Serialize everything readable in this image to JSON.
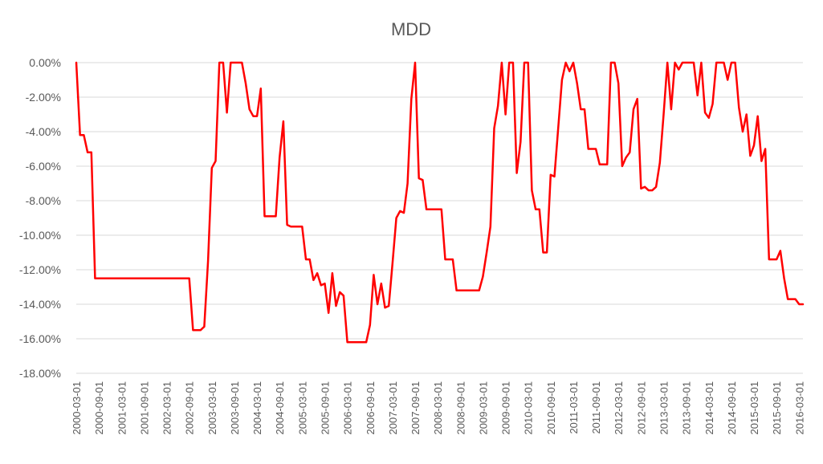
{
  "chart_data": {
    "type": "line",
    "title": "MDD",
    "xlabel": "",
    "ylabel": "",
    "ylim": [
      -0.18,
      0.0
    ],
    "y_ticks": [
      {
        "value": 0.0,
        "label": "0.00%"
      },
      {
        "value": -0.02,
        "label": "-2.00%"
      },
      {
        "value": -0.04,
        "label": "-4.00%"
      },
      {
        "value": -0.06,
        "label": "-6.00%"
      },
      {
        "value": -0.08,
        "label": "-8.00%"
      },
      {
        "value": -0.1,
        "label": "-10.00%"
      },
      {
        "value": -0.12,
        "label": "-12.00%"
      },
      {
        "value": -0.14,
        "label": "-14.00%"
      },
      {
        "value": -0.16,
        "label": "-16.00%"
      },
      {
        "value": -0.18,
        "label": "-18.00%"
      }
    ],
    "x_ticks": [
      "2000-03-01",
      "2000-09-01",
      "2001-03-01",
      "2001-09-01",
      "2002-03-01",
      "2002-09-01",
      "2003-03-01",
      "2003-09-01",
      "2004-03-01",
      "2004-09-01",
      "2005-03-01",
      "2005-09-01",
      "2006-03-01",
      "2006-09-01",
      "2007-03-01",
      "2007-09-01",
      "2008-03-01",
      "2008-09-01",
      "2009-03-01",
      "2009-09-01",
      "2010-03-01",
      "2010-09-01",
      "2011-03-01",
      "2011-09-01",
      "2012-03-01",
      "2012-09-01",
      "2013-03-01",
      "2013-09-01",
      "2014-03-01",
      "2014-09-01",
      "2015-03-01",
      "2015-09-01",
      "2016-03-01"
    ],
    "grid": true,
    "legend": "none",
    "series": [
      {
        "color": "#ff0000",
        "points": [
          [
            "2000-03-01",
            0.0
          ],
          [
            "2000-04-01",
            -0.042
          ],
          [
            "2000-05-01",
            -0.042
          ],
          [
            "2000-06-01",
            -0.052
          ],
          [
            "2000-07-01",
            -0.052
          ],
          [
            "2000-08-01",
            -0.125
          ],
          [
            "2002-09-01",
            -0.125
          ],
          [
            "2002-10-01",
            -0.155
          ],
          [
            "2002-11-01",
            -0.155
          ],
          [
            "2002-12-01",
            -0.155
          ],
          [
            "2003-01-01",
            -0.153
          ],
          [
            "2003-02-01",
            -0.115
          ],
          [
            "2003-03-01",
            -0.061
          ],
          [
            "2003-04-01",
            -0.057
          ],
          [
            "2003-05-01",
            0.0
          ],
          [
            "2003-06-01",
            0.0
          ],
          [
            "2003-07-01",
            -0.029
          ],
          [
            "2003-08-01",
            0.0
          ],
          [
            "2003-09-01",
            0.0
          ],
          [
            "2003-10-01",
            0.0
          ],
          [
            "2003-11-01",
            0.0
          ],
          [
            "2003-12-01",
            -0.012
          ],
          [
            "2004-01-01",
            -0.027
          ],
          [
            "2004-02-01",
            -0.031
          ],
          [
            "2004-03-01",
            -0.031
          ],
          [
            "2004-04-01",
            -0.015
          ],
          [
            "2004-05-01",
            -0.089
          ],
          [
            "2004-06-01",
            -0.089
          ],
          [
            "2004-07-01",
            -0.089
          ],
          [
            "2004-08-01",
            -0.089
          ],
          [
            "2004-09-01",
            -0.055
          ],
          [
            "2004-10-01",
            -0.034
          ],
          [
            "2004-11-01",
            -0.094
          ],
          [
            "2004-12-01",
            -0.095
          ],
          [
            "2005-01-01",
            -0.095
          ],
          [
            "2005-02-01",
            -0.095
          ],
          [
            "2005-03-01",
            -0.095
          ],
          [
            "2005-04-01",
            -0.114
          ],
          [
            "2005-05-01",
            -0.114
          ],
          [
            "2005-06-01",
            -0.126
          ],
          [
            "2005-07-01",
            -0.122
          ],
          [
            "2005-08-01",
            -0.129
          ],
          [
            "2005-09-01",
            -0.128
          ],
          [
            "2005-10-01",
            -0.145
          ],
          [
            "2005-11-01",
            -0.122
          ],
          [
            "2005-12-01",
            -0.141
          ],
          [
            "2006-01-01",
            -0.133
          ],
          [
            "2006-02-01",
            -0.135
          ],
          [
            "2006-03-01",
            -0.162
          ],
          [
            "2006-04-01",
            -0.162
          ],
          [
            "2006-05-01",
            -0.162
          ],
          [
            "2006-06-01",
            -0.162
          ],
          [
            "2006-07-01",
            -0.162
          ],
          [
            "2006-08-01",
            -0.162
          ],
          [
            "2006-09-01",
            -0.152
          ],
          [
            "2006-10-01",
            -0.123
          ],
          [
            "2006-11-01",
            -0.14
          ],
          [
            "2006-12-01",
            -0.128
          ],
          [
            "2007-01-01",
            -0.142
          ],
          [
            "2007-02-01",
            -0.141
          ],
          [
            "2007-03-01",
            -0.116
          ],
          [
            "2007-04-01",
            -0.09
          ],
          [
            "2007-05-01",
            -0.086
          ],
          [
            "2007-06-01",
            -0.087
          ],
          [
            "2007-07-01",
            -0.07
          ],
          [
            "2007-08-01",
            -0.021
          ],
          [
            "2007-09-01",
            0.0
          ],
          [
            "2007-10-01",
            -0.067
          ],
          [
            "2007-11-01",
            -0.068
          ],
          [
            "2007-12-01",
            -0.085
          ],
          [
            "2008-01-01",
            -0.085
          ],
          [
            "2008-02-01",
            -0.085
          ],
          [
            "2008-03-01",
            -0.085
          ],
          [
            "2008-04-01",
            -0.085
          ],
          [
            "2008-05-01",
            -0.114
          ],
          [
            "2008-06-01",
            -0.114
          ],
          [
            "2008-07-01",
            -0.114
          ],
          [
            "2008-08-01",
            -0.132
          ],
          [
            "2009-02-01",
            -0.132
          ],
          [
            "2009-03-01",
            -0.124
          ],
          [
            "2009-04-01",
            -0.11
          ],
          [
            "2009-05-01",
            -0.095
          ],
          [
            "2009-06-01",
            -0.038
          ],
          [
            "2009-07-01",
            -0.025
          ],
          [
            "2009-08-01",
            0.0
          ],
          [
            "2009-09-01",
            -0.03
          ],
          [
            "2009-10-01",
            0.0
          ],
          [
            "2009-11-01",
            0.0
          ],
          [
            "2009-12-01",
            -0.064
          ],
          [
            "2010-01-01",
            -0.046
          ],
          [
            "2010-02-01",
            0.0
          ],
          [
            "2010-03-01",
            0.0
          ],
          [
            "2010-04-01",
            -0.074
          ],
          [
            "2010-05-01",
            -0.085
          ],
          [
            "2010-06-01",
            -0.085
          ],
          [
            "2010-07-01",
            -0.11
          ],
          [
            "2010-08-01",
            -0.11
          ],
          [
            "2010-09-01",
            -0.065
          ],
          [
            "2010-10-01",
            -0.066
          ],
          [
            "2010-11-01",
            -0.038
          ],
          [
            "2010-12-01",
            -0.01
          ],
          [
            "2011-01-01",
            0.0
          ],
          [
            "2011-02-01",
            -0.005
          ],
          [
            "2011-03-01",
            0.0
          ],
          [
            "2011-04-01",
            -0.012
          ],
          [
            "2011-05-01",
            -0.027
          ],
          [
            "2011-06-01",
            -0.027
          ],
          [
            "2011-07-01",
            -0.05
          ],
          [
            "2011-08-01",
            -0.05
          ],
          [
            "2011-09-01",
            -0.05
          ],
          [
            "2011-10-01",
            -0.059
          ],
          [
            "2011-11-01",
            -0.059
          ],
          [
            "2011-12-01",
            -0.059
          ],
          [
            "2012-01-01",
            0.0
          ],
          [
            "2012-02-01",
            0.0
          ],
          [
            "2012-03-01",
            -0.012
          ],
          [
            "2012-04-01",
            -0.06
          ],
          [
            "2012-05-01",
            -0.055
          ],
          [
            "2012-06-01",
            -0.052
          ],
          [
            "2012-07-01",
            -0.027
          ],
          [
            "2012-08-01",
            -0.021
          ],
          [
            "2012-09-01",
            -0.073
          ],
          [
            "2012-10-01",
            -0.072
          ],
          [
            "2012-11-01",
            -0.074
          ],
          [
            "2012-12-01",
            -0.074
          ],
          [
            "2013-01-01",
            -0.072
          ],
          [
            "2013-02-01",
            -0.058
          ],
          [
            "2013-03-01",
            -0.03
          ],
          [
            "2013-04-01",
            0.0
          ],
          [
            "2013-05-01",
            -0.027
          ],
          [
            "2013-06-01",
            0.0
          ],
          [
            "2013-07-01",
            -0.004
          ],
          [
            "2013-08-01",
            0.0
          ],
          [
            "2013-09-01",
            0.0
          ],
          [
            "2013-10-01",
            0.0
          ],
          [
            "2013-11-01",
            0.0
          ],
          [
            "2013-12-01",
            -0.019
          ],
          [
            "2014-01-01",
            0.0
          ],
          [
            "2014-02-01",
            -0.029
          ],
          [
            "2014-03-01",
            -0.032
          ],
          [
            "2014-04-01",
            -0.024
          ],
          [
            "2014-05-01",
            0.0
          ],
          [
            "2014-06-01",
            0.0
          ],
          [
            "2014-07-01",
            0.0
          ],
          [
            "2014-08-01",
            -0.01
          ],
          [
            "2014-09-01",
            0.0
          ],
          [
            "2014-10-01",
            0.0
          ],
          [
            "2014-11-01",
            -0.026
          ],
          [
            "2014-12-01",
            -0.04
          ],
          [
            "2015-01-01",
            -0.03
          ],
          [
            "2015-02-01",
            -0.054
          ],
          [
            "2015-03-01",
            -0.048
          ],
          [
            "2015-04-01",
            -0.031
          ],
          [
            "2015-05-01",
            -0.057
          ],
          [
            "2015-06-01",
            -0.05
          ],
          [
            "2015-07-01",
            -0.114
          ],
          [
            "2015-08-01",
            -0.114
          ],
          [
            "2015-09-01",
            -0.114
          ],
          [
            "2015-10-01",
            -0.109
          ],
          [
            "2015-11-01",
            -0.125
          ],
          [
            "2015-12-01",
            -0.137
          ],
          [
            "2016-01-01",
            -0.137
          ],
          [
            "2016-02-01",
            -0.137
          ],
          [
            "2016-03-01",
            -0.14
          ],
          [
            "2016-04-01",
            -0.14
          ]
        ]
      }
    ]
  }
}
